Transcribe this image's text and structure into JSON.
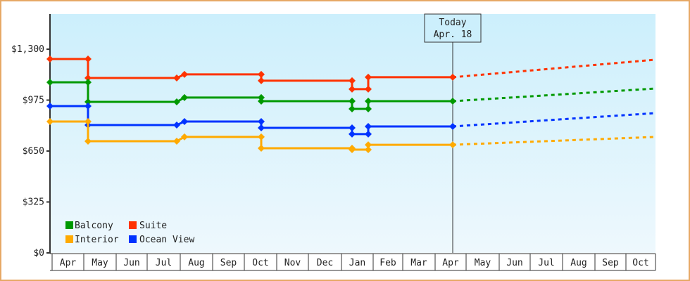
{
  "chart_data": {
    "type": "line",
    "title": "",
    "xlabel": "",
    "ylabel": "",
    "ylim": [
      0,
      1300
    ],
    "y_ticks": [
      "$0",
      "$325",
      "$650",
      "$975",
      "$1,300"
    ],
    "y_tick_values": [
      0,
      325,
      650,
      975,
      1300
    ],
    "x_tick_labels": [
      "Apr",
      "May",
      "Jun",
      "Jul",
      "Aug",
      "Sep",
      "Oct",
      "Nov",
      "Dec",
      "Jan",
      "Feb",
      "Mar",
      "Apr",
      "May",
      "Jun",
      "Jul",
      "Aug",
      "Sep",
      "Oct"
    ],
    "grid": false,
    "legend_position": "lower-left inside",
    "annotation": {
      "line1": "Today",
      "line2": "Apr. 18"
    },
    "series": [
      {
        "name": "Suite",
        "color": "#FF3300",
        "points": [
          [
            "Apr start",
            1237
          ],
          [
            "May",
            1237
          ],
          [
            "May",
            1116
          ],
          [
            "Aug",
            1116
          ],
          [
            "Aug",
            1139
          ],
          [
            "Oct",
            1139
          ],
          [
            "Oct",
            1099
          ],
          [
            "Jan",
            1099
          ],
          [
            "Jan",
            1045
          ],
          [
            "Jan late",
            1045
          ],
          [
            "Jan late",
            1121
          ],
          [
            "Apr 18",
            1121
          ]
        ],
        "projection": [
          [
            "Apr 18",
            1121
          ],
          [
            "Oct end",
            1233
          ]
        ]
      },
      {
        "name": "Balcony",
        "color": "#009900",
        "points": [
          [
            "Apr start",
            1089
          ],
          [
            "May",
            1089
          ],
          [
            "May",
            964
          ],
          [
            "Aug",
            964
          ],
          [
            "Aug",
            991
          ],
          [
            "Oct",
            991
          ],
          [
            "Oct",
            968
          ],
          [
            "Jan",
            968
          ],
          [
            "Jan",
            919
          ],
          [
            "Jan late",
            919
          ],
          [
            "Jan late",
            968
          ],
          [
            "Apr 18",
            968
          ]
        ],
        "projection": [
          [
            "Apr 18",
            968
          ],
          [
            "Oct end",
            1049
          ]
        ]
      },
      {
        "name": "Ocean View",
        "color": "#0033FF",
        "points": [
          [
            "Apr start",
            937
          ],
          [
            "May",
            937
          ],
          [
            "May",
            816
          ],
          [
            "Aug",
            816
          ],
          [
            "Aug",
            838
          ],
          [
            "Oct",
            838
          ],
          [
            "Oct",
            798
          ],
          [
            "Jan",
            798
          ],
          [
            "Jan",
            758
          ],
          [
            "Jan late",
            758
          ],
          [
            "Jan late",
            807
          ],
          [
            "Apr 18",
            807
          ]
        ],
        "projection": [
          [
            "Apr 18",
            807
          ],
          [
            "Oct end",
            892
          ]
        ]
      },
      {
        "name": "Interior",
        "color": "#FFAA00",
        "points": [
          [
            "Apr start",
            838
          ],
          [
            "May",
            838
          ],
          [
            "May",
            713
          ],
          [
            "Aug",
            713
          ],
          [
            "Aug",
            740
          ],
          [
            "Oct",
            740
          ],
          [
            "Oct",
            668
          ],
          [
            "Jan",
            668
          ],
          [
            "Jan",
            659
          ],
          [
            "Jan late",
            659
          ],
          [
            "Jan late",
            690
          ],
          [
            "Apr 18",
            690
          ]
        ],
        "projection": [
          [
            "Apr 18",
            690
          ],
          [
            "Oct end",
            740
          ]
        ]
      }
    ]
  },
  "legend": {
    "items": [
      {
        "label": "Balcony",
        "color": "#009900"
      },
      {
        "label": "Suite",
        "color": "#FF3300"
      },
      {
        "label": "Interior",
        "color": "#FFAA00"
      },
      {
        "label": "Ocean View",
        "color": "#0033FF"
      }
    ]
  }
}
